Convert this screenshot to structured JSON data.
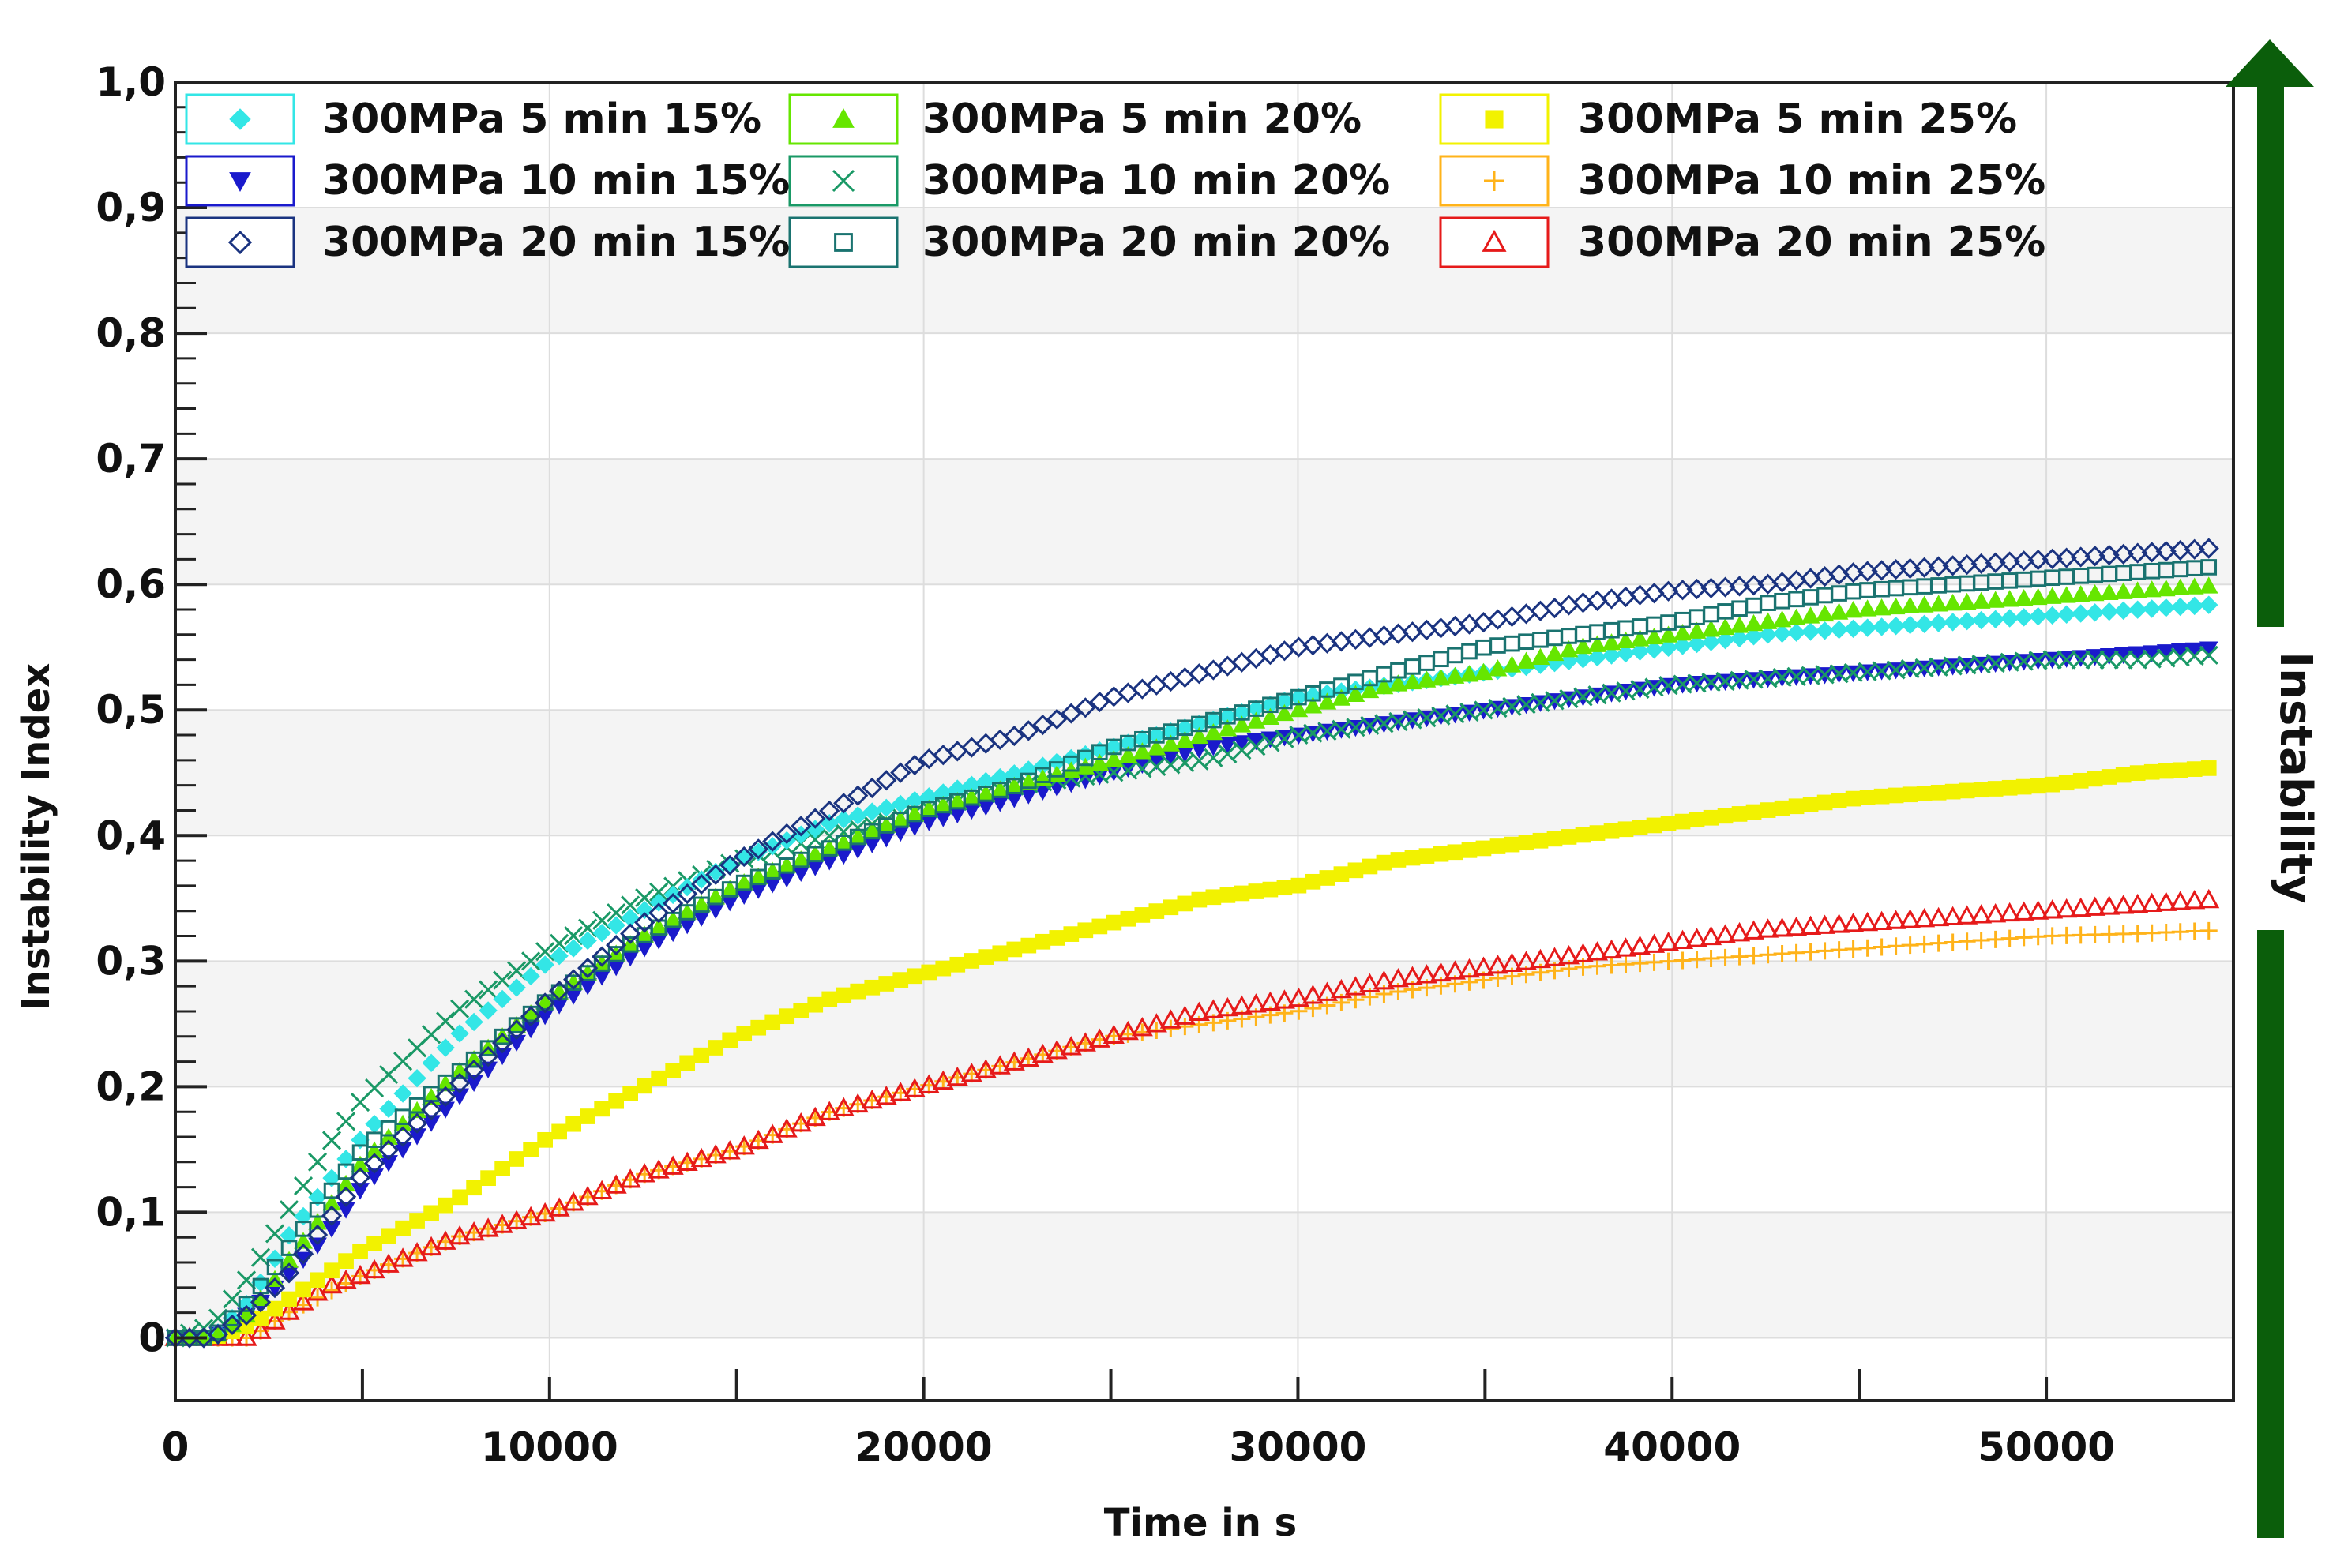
{
  "chart_data": {
    "type": "scatter",
    "title": "",
    "xlabel": "Time in s",
    "ylabel": "Instability Index",
    "side_label": "Instability",
    "xlim": [
      0,
      55000
    ],
    "ylim": [
      -0.05,
      1.0
    ],
    "x_ticks": [
      0,
      10000,
      20000,
      30000,
      40000,
      50000
    ],
    "x_tick_labels": [
      "0",
      "10000",
      "20000",
      "30000",
      "40000",
      "50000"
    ],
    "y_ticks": [
      0,
      0.1,
      0.2,
      0.3,
      0.4,
      0.5,
      0.6,
      0.7,
      0.8,
      0.9,
      1.0
    ],
    "y_tick_labels": [
      "0",
      "0,1",
      "0,2",
      "0,3",
      "0,4",
      "0,5",
      "0,6",
      "0,7",
      "0,8",
      "0,9",
      "1,0"
    ],
    "grid": true,
    "legend_position": "top",
    "arrow_color": "#0b5e0b",
    "x": [
      0,
      1000,
      2000,
      3000,
      4000,
      5000,
      7500,
      10000,
      12500,
      15000,
      17500,
      20000,
      22500,
      25000,
      27500,
      30000,
      32500,
      35000,
      37500,
      40000,
      42500,
      45000,
      47500,
      50000,
      52500,
      55000
    ],
    "series": [
      {
        "name": "300MPa 5 min 15%",
        "color": "#33e6e6",
        "marker": "diamond-filled",
        "values": [
          0.0,
          0.0,
          0.03,
          0.08,
          0.12,
          0.16,
          0.24,
          0.3,
          0.34,
          0.38,
          0.41,
          0.43,
          0.45,
          0.47,
          0.49,
          0.51,
          0.52,
          0.53,
          0.54,
          0.55,
          0.56,
          0.565,
          0.57,
          0.575,
          0.58,
          0.585
        ]
      },
      {
        "name": "300MPa 5 min 20%",
        "color": "#66e600",
        "marker": "triangle-filled",
        "values": [
          0.0,
          0.0,
          0.02,
          0.06,
          0.1,
          0.14,
          0.21,
          0.27,
          0.32,
          0.36,
          0.39,
          0.42,
          0.44,
          0.46,
          0.48,
          0.5,
          0.52,
          0.53,
          0.55,
          0.56,
          0.57,
          0.58,
          0.585,
          0.59,
          0.595,
          0.6
        ]
      },
      {
        "name": "300MPa 5 min 25%",
        "color": "#f2f200",
        "marker": "square-filled",
        "values": [
          0.0,
          0.0,
          0.01,
          0.03,
          0.05,
          0.07,
          0.11,
          0.16,
          0.2,
          0.24,
          0.27,
          0.29,
          0.31,
          0.33,
          0.35,
          0.36,
          0.38,
          0.39,
          0.4,
          0.41,
          0.42,
          0.43,
          0.435,
          0.44,
          0.45,
          0.455
        ]
      },
      {
        "name": "300MPa 10 min 15%",
        "color": "#1a1acc",
        "marker": "triangle-down-filled",
        "values": [
          0.0,
          0.0,
          0.02,
          0.05,
          0.08,
          0.12,
          0.19,
          0.26,
          0.31,
          0.35,
          0.38,
          0.41,
          0.43,
          0.45,
          0.47,
          0.48,
          0.49,
          0.5,
          0.51,
          0.52,
          0.525,
          0.53,
          0.535,
          0.54,
          0.545,
          0.55
        ]
      },
      {
        "name": "300MPa 10 min 20%",
        "color": "#1a9966",
        "marker": "x",
        "values": [
          0.0,
          0.01,
          0.05,
          0.1,
          0.15,
          0.19,
          0.26,
          0.31,
          0.35,
          0.38,
          0.4,
          0.42,
          0.44,
          0.45,
          0.46,
          0.48,
          0.49,
          0.5,
          0.51,
          0.52,
          0.525,
          0.53,
          0.535,
          0.54,
          0.54,
          0.545
        ]
      },
      {
        "name": "300MPa 10 min 25%",
        "color": "#ffb31a",
        "marker": "plus",
        "values": [
          0.0,
          0.0,
          0.0,
          0.02,
          0.035,
          0.05,
          0.08,
          0.1,
          0.13,
          0.15,
          0.18,
          0.2,
          0.22,
          0.24,
          0.25,
          0.26,
          0.275,
          0.285,
          0.295,
          0.3,
          0.305,
          0.31,
          0.315,
          0.32,
          0.322,
          0.325
        ]
      },
      {
        "name": "300MPa 20 min 15%",
        "color": "#1a3380",
        "marker": "diamond-open",
        "values": [
          0.0,
          0.0,
          0.02,
          0.05,
          0.09,
          0.13,
          0.2,
          0.27,
          0.33,
          0.38,
          0.42,
          0.46,
          0.48,
          0.51,
          0.53,
          0.55,
          0.56,
          0.57,
          0.585,
          0.595,
          0.6,
          0.61,
          0.615,
          0.62,
          0.625,
          0.63
        ]
      },
      {
        "name": "300MPa 20 min 20%",
        "color": "#1a7370",
        "marker": "square-open",
        "values": [
          0.0,
          0.0,
          0.03,
          0.07,
          0.11,
          0.15,
          0.21,
          0.27,
          0.32,
          0.36,
          0.39,
          0.42,
          0.44,
          0.47,
          0.49,
          0.51,
          0.53,
          0.55,
          0.56,
          0.57,
          0.585,
          0.595,
          0.6,
          0.605,
          0.61,
          0.615
        ]
      },
      {
        "name": "300MPa 20 min 25%",
        "color": "#e61a1a",
        "marker": "triangle-open",
        "values": [
          0.0,
          0.0,
          0.0,
          0.02,
          0.04,
          0.05,
          0.08,
          0.1,
          0.13,
          0.15,
          0.18,
          0.2,
          0.22,
          0.24,
          0.26,
          0.27,
          0.285,
          0.295,
          0.305,
          0.315,
          0.325,
          0.33,
          0.335,
          0.34,
          0.345,
          0.35
        ]
      }
    ]
  }
}
